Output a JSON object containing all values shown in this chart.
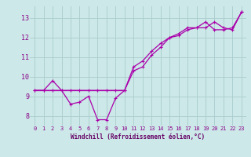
{
  "bg_color": "#cce8e8",
  "grid_color": "#aacccc",
  "line_color": "#aa00aa",
  "xlim": [
    -0.5,
    23.5
  ],
  "ylim": [
    7.5,
    13.6
  ],
  "xticks": [
    0,
    1,
    2,
    3,
    4,
    5,
    6,
    7,
    8,
    9,
    10,
    11,
    12,
    13,
    14,
    15,
    16,
    17,
    18,
    19,
    20,
    21,
    22,
    23
  ],
  "yticks": [
    8,
    9,
    10,
    11,
    12,
    13
  ],
  "xlabel": "Windchill (Refroidissement éolien,°C)",
  "series1_x": [
    0,
    1,
    2,
    3,
    4,
    5,
    6,
    7,
    8,
    9,
    10
  ],
  "series1_y": [
    9.3,
    9.3,
    9.3,
    9.3,
    9.3,
    9.3,
    9.3,
    9.3,
    9.3,
    9.3,
    9.3
  ],
  "series2_x": [
    0,
    1,
    2,
    3,
    4,
    5,
    6,
    7,
    8,
    9,
    10,
    11,
    12,
    13,
    14,
    15,
    16,
    17,
    18,
    19,
    20,
    21,
    22,
    23
  ],
  "series2_y": [
    9.3,
    9.3,
    9.8,
    9.3,
    8.6,
    8.7,
    9.0,
    7.8,
    7.8,
    8.9,
    9.3,
    10.3,
    10.5,
    11.1,
    11.5,
    12.0,
    12.2,
    12.5,
    12.5,
    12.8,
    12.4,
    12.4,
    12.5,
    13.3
  ],
  "series3_x": [
    0,
    1,
    2,
    3,
    4,
    5,
    6,
    7,
    8,
    9,
    10,
    11,
    12,
    13,
    14,
    15,
    16,
    17,
    18,
    19,
    20,
    21,
    22,
    23
  ],
  "series3_y": [
    9.3,
    9.3,
    9.3,
    9.3,
    9.3,
    9.3,
    9.3,
    9.3,
    9.3,
    9.3,
    9.3,
    10.5,
    10.8,
    11.3,
    11.7,
    12.0,
    12.1,
    12.4,
    12.5,
    12.5,
    12.8,
    12.5,
    12.4,
    13.3
  ]
}
